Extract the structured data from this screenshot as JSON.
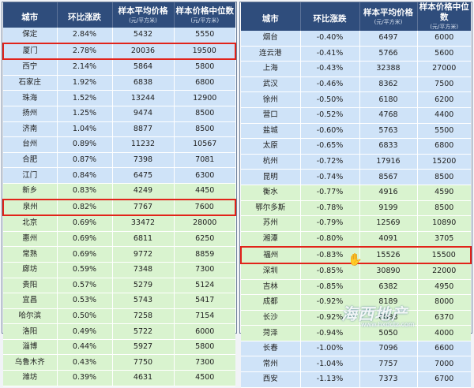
{
  "headers": {
    "city": "城市",
    "mom": "环比涨跌",
    "avg": "样本平均价格",
    "avg_unit": "(元/平方米)",
    "median": "样本价格中位数",
    "median_unit": "(元/平方米)"
  },
  "left_rows": [
    {
      "city": "保定",
      "mom": "2.84%",
      "avg": "5432",
      "median": "5550",
      "bg": "blue"
    },
    {
      "city": "厦门",
      "mom": "2.78%",
      "avg": "20036",
      "median": "19500",
      "bg": "blue",
      "hl": true
    },
    {
      "city": "西宁",
      "mom": "2.14%",
      "avg": "5864",
      "median": "5800",
      "bg": "blue"
    },
    {
      "city": "石家庄",
      "mom": "1.92%",
      "avg": "6838",
      "median": "6800",
      "bg": "blue"
    },
    {
      "city": "珠海",
      "mom": "1.52%",
      "avg": "13244",
      "median": "12900",
      "bg": "blue"
    },
    {
      "city": "扬州",
      "mom": "1.25%",
      "avg": "9474",
      "median": "8500",
      "bg": "blue"
    },
    {
      "city": "济南",
      "mom": "1.04%",
      "avg": "8877",
      "median": "8500",
      "bg": "blue"
    },
    {
      "city": "台州",
      "mom": "0.89%",
      "avg": "11232",
      "median": "10567",
      "bg": "blue"
    },
    {
      "city": "合肥",
      "mom": "0.87%",
      "avg": "7398",
      "median": "7081",
      "bg": "blue"
    },
    {
      "city": "江门",
      "mom": "0.84%",
      "avg": "6475",
      "median": "6300",
      "bg": "blue"
    },
    {
      "city": "新乡",
      "mom": "0.83%",
      "avg": "4249",
      "median": "4450",
      "bg": "green"
    },
    {
      "city": "泉州",
      "mom": "0.82%",
      "avg": "7767",
      "median": "7600",
      "bg": "green",
      "hl": true
    },
    {
      "city": "北京",
      "mom": "0.69%",
      "avg": "33472",
      "median": "28000",
      "bg": "green"
    },
    {
      "city": "惠州",
      "mom": "0.69%",
      "avg": "6811",
      "median": "6250",
      "bg": "green"
    },
    {
      "city": "常熟",
      "mom": "0.69%",
      "avg": "9772",
      "median": "8859",
      "bg": "green"
    },
    {
      "city": "廊坊",
      "mom": "0.59%",
      "avg": "7348",
      "median": "7300",
      "bg": "green"
    },
    {
      "city": "贵阳",
      "mom": "0.57%",
      "avg": "5279",
      "median": "5124",
      "bg": "green"
    },
    {
      "city": "宜昌",
      "mom": "0.53%",
      "avg": "5743",
      "median": "5417",
      "bg": "green"
    },
    {
      "city": "哈尔滨",
      "mom": "0.50%",
      "avg": "7258",
      "median": "7154",
      "bg": "green"
    },
    {
      "city": "洛阳",
      "mom": "0.49%",
      "avg": "5722",
      "median": "6000",
      "bg": "green"
    },
    {
      "city": "淄博",
      "mom": "0.44%",
      "avg": "5927",
      "median": "5800",
      "bg": "green"
    },
    {
      "city": "乌鲁木齐",
      "mom": "0.43%",
      "avg": "7750",
      "median": "7300",
      "bg": "green"
    },
    {
      "city": "潍坊",
      "mom": "0.39%",
      "avg": "4631",
      "median": "4500",
      "bg": "green"
    }
  ],
  "right_rows": [
    {
      "city": "烟台",
      "mom": "-0.40%",
      "avg": "6497",
      "median": "6000",
      "bg": "blue"
    },
    {
      "city": "连云港",
      "mom": "-0.41%",
      "avg": "5766",
      "median": "5600",
      "bg": "blue"
    },
    {
      "city": "上海",
      "mom": "-0.43%",
      "avg": "32388",
      "median": "27000",
      "bg": "blue"
    },
    {
      "city": "武汉",
      "mom": "-0.46%",
      "avg": "8362",
      "median": "7500",
      "bg": "blue"
    },
    {
      "city": "徐州",
      "mom": "-0.50%",
      "avg": "6180",
      "median": "6200",
      "bg": "blue"
    },
    {
      "city": "营口",
      "mom": "-0.52%",
      "avg": "4768",
      "median": "4400",
      "bg": "blue"
    },
    {
      "city": "盐城",
      "mom": "-0.60%",
      "avg": "5763",
      "median": "5500",
      "bg": "blue"
    },
    {
      "city": "太原",
      "mom": "-0.65%",
      "avg": "6833",
      "median": "6800",
      "bg": "blue"
    },
    {
      "city": "杭州",
      "mom": "-0.72%",
      "avg": "17916",
      "median": "15200",
      "bg": "blue"
    },
    {
      "city": "昆明",
      "mom": "-0.74%",
      "avg": "8567",
      "median": "8500",
      "bg": "blue"
    },
    {
      "city": "衡水",
      "mom": "-0.77%",
      "avg": "4916",
      "median": "4590",
      "bg": "green"
    },
    {
      "city": "鄂尔多斯",
      "mom": "-0.78%",
      "avg": "9199",
      "median": "8500",
      "bg": "green"
    },
    {
      "city": "苏州",
      "mom": "-0.79%",
      "avg": "12569",
      "median": "10890",
      "bg": "green"
    },
    {
      "city": "湘潭",
      "mom": "-0.80%",
      "avg": "4091",
      "median": "3705",
      "bg": "green"
    },
    {
      "city": "福州",
      "mom": "-0.83%",
      "avg": "15526",
      "median": "15500",
      "bg": "green",
      "hl": true
    },
    {
      "city": "深圳",
      "mom": "-0.85%",
      "avg": "30890",
      "median": "22000",
      "bg": "green"
    },
    {
      "city": "吉林",
      "mom": "-0.85%",
      "avg": "6382",
      "median": "4950",
      "bg": "green"
    },
    {
      "city": "成都",
      "mom": "-0.92%",
      "avg": "8189",
      "median": "8000",
      "bg": "green"
    },
    {
      "city": "长沙",
      "mom": "-0.92%",
      "avg": "6888",
      "median": "6370",
      "bg": "green"
    },
    {
      "city": "菏泽",
      "mom": "-0.94%",
      "avg": "5050",
      "median": "4000",
      "bg": "green"
    },
    {
      "city": "长春",
      "mom": "-1.00%",
      "avg": "7096",
      "median": "6600",
      "bg": "blue"
    },
    {
      "city": "常州",
      "mom": "-1.04%",
      "avg": "7757",
      "median": "7000",
      "bg": "blue"
    },
    {
      "city": "西安",
      "mom": "-1.13%",
      "avg": "7373",
      "median": "6700",
      "bg": "blue"
    }
  ],
  "watermark": {
    "brand": "海西地产",
    "url": "www.hxdctz.com"
  }
}
